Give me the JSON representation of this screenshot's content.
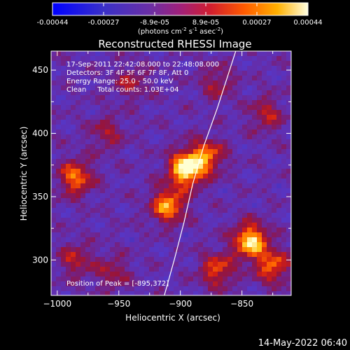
{
  "colorbar": {
    "tick_labels": [
      "-0.00044",
      "-0.00027",
      "-8.9e-05",
      "8.9e-05",
      "0.00027",
      "0.00044"
    ],
    "range": [
      -0.00044,
      0.00044
    ],
    "units_parts": [
      "(photons cm",
      "-2",
      " s",
      "-1",
      " asec",
      "-2",
      ")"
    ]
  },
  "chart_data": {
    "type": "heatmap",
    "title": "Reconstructed RHESSI Image",
    "xlabel": "Heliocentric X (arcsec)",
    "ylabel": "Heliocentric Y (arcsec)",
    "xlim": [
      -1005,
      -810
    ],
    "ylim": [
      272,
      465
    ],
    "x_ticks": [
      -1000,
      -950,
      -900,
      -850
    ],
    "y_ticks": [
      300,
      350,
      400,
      450
    ],
    "grid": false,
    "annotations": [
      "17-Sep-2011 22:42:08.000 to 22:48:08.000",
      "Detectors: 3F 4F 5F 6F 7F 8F, Att 0",
      "Energy Range: 25.0 - 50.0 keV",
      "Clean     Total counts: 1.03E+04"
    ],
    "peak_label": "Position of Peak = [-895,372]",
    "peak_position": [
      -895,
      372
    ],
    "limb_curve": [
      [
        -913,
        272
      ],
      [
        -905,
        300
      ],
      [
        -897,
        330
      ],
      [
        -890,
        360
      ],
      [
        -881,
        390
      ],
      [
        -870,
        420
      ],
      [
        -855,
        465
      ]
    ],
    "sources": [
      {
        "x": -895,
        "y": 372,
        "intensity": 1.0
      },
      {
        "x": -910,
        "y": 343,
        "intensity": 0.7
      },
      {
        "x": -878,
        "y": 382,
        "intensity": 0.55
      },
      {
        "x": -843,
        "y": 315,
        "intensity": 0.85
      },
      {
        "x": -825,
        "y": 295,
        "intensity": 0.55
      },
      {
        "x": -870,
        "y": 292,
        "intensity": 0.5
      },
      {
        "x": -985,
        "y": 365,
        "intensity": 0.6
      },
      {
        "x": -960,
        "y": 400,
        "intensity": 0.3
      },
      {
        "x": -985,
        "y": 300,
        "intensity": 0.35
      },
      {
        "x": -940,
        "y": 440,
        "intensity": 0.3
      },
      {
        "x": -870,
        "y": 440,
        "intensity": 0.3
      },
      {
        "x": -830,
        "y": 415,
        "intensity": 0.35
      },
      {
        "x": -955,
        "y": 290,
        "intensity": 0.3
      }
    ]
  },
  "footer": {
    "timestamp": "14-May-2022 06:40"
  }
}
